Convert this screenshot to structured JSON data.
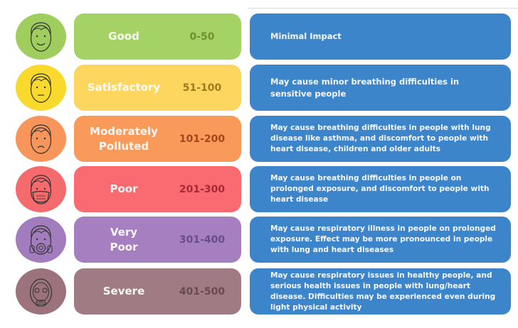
{
  "rows": [
    {
      "category": [
        "Good"
      ],
      "range": "0-50",
      "description": [
        "Minimal Impact"
      ],
      "icon": "smiling-face-icon",
      "circle_color": "#9fce5e",
      "pill_color": "#a5d264",
      "range_color": "#6f8f34",
      "big": true
    },
    {
      "category": [
        "Satisfactory"
      ],
      "range": "51-100",
      "description": [
        "May cause minor breathing difficulties in",
        "sensitive people"
      ],
      "icon": "neutral-face-icon",
      "circle_color": "#f9d92c",
      "pill_color": "#fcd65f",
      "range_color": "#9e7a1c",
      "big": true
    },
    {
      "category": [
        "Moderately",
        "Polluted"
      ],
      "range": "101-200",
      "description": [
        "May cause breathing difficulties in people with lung",
        "disease like asthma, and discomfort to people with",
        "heart disease, children and older adults"
      ],
      "icon": "frowning-face-icon",
      "circle_color": "#f7955a",
      "pill_color": "#fa9a5a",
      "range_color": "#a2461e",
      "big": false
    },
    {
      "category": [
        "Poor"
      ],
      "range": "201-300",
      "description": [
        "May cause breathing difficulties in people on",
        "prolonged exposure, and discomfort to people with",
        "heart disease"
      ],
      "icon": "face-with-mask-icon",
      "circle_color": "#f56a6c",
      "pill_color": "#f96b70",
      "range_color": "#a82a38",
      "big": false
    },
    {
      "category": [
        "Very",
        "Poor"
      ],
      "range": "301-400",
      "description": [
        "May cause respiratory illness in people on prolonged",
        "exposure. Effect may be more pronounced in people",
        "with lung and heart diseases"
      ],
      "icon": "face-with-respirator-icon",
      "circle_color": "#a27cbd",
      "pill_color": "#a57fbf",
      "range_color": "#6a4c8a",
      "big": false
    },
    {
      "category": [
        "Severe"
      ],
      "range": "401-500",
      "description": [
        "May cause respiratory issues in healthy people, and",
        "serious health issues in people with lung/heart",
        "disease. Difficulties may be experienced even during",
        "light physical activity"
      ],
      "icon": "gas-mask-icon",
      "circle_color": "#9c737c",
      "pill_color": "#a07b83",
      "range_color": "#6a4a52",
      "big": false
    }
  ]
}
